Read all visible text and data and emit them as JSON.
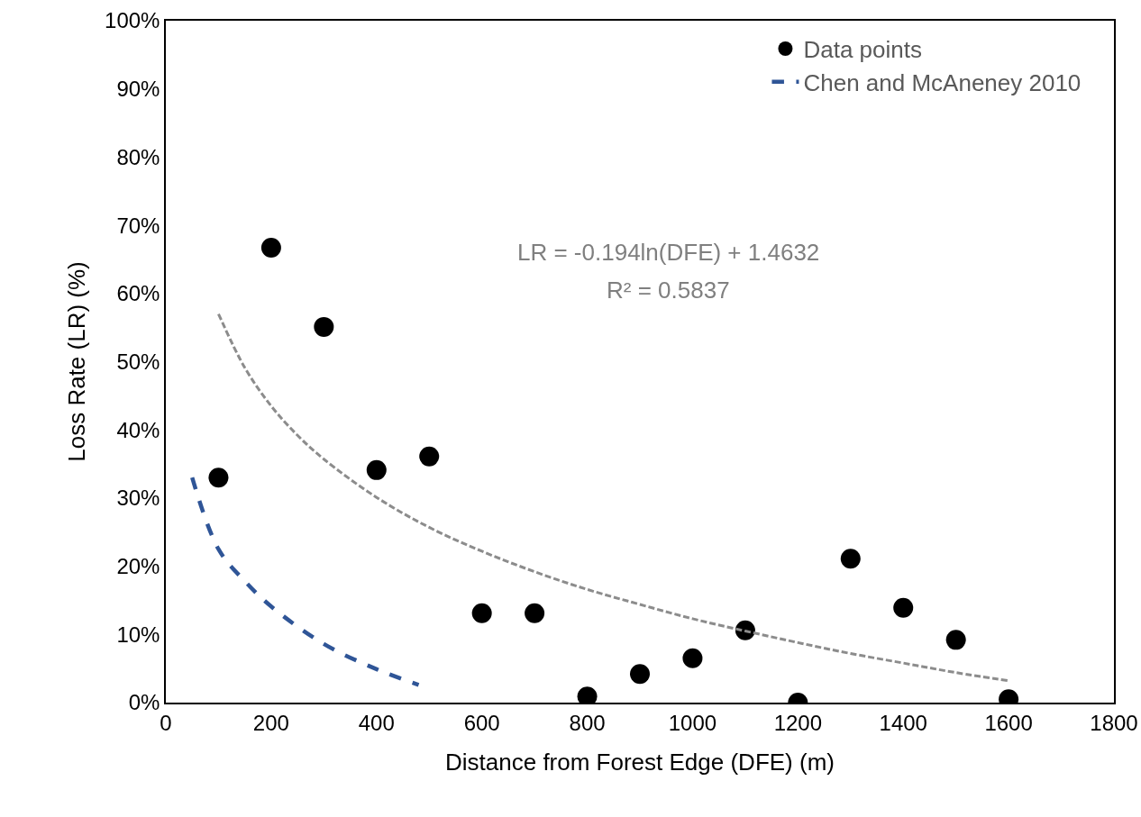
{
  "chart_data": {
    "type": "scatter",
    "xlabel": "Distance from Forest Edge (DFE) (m)",
    "ylabel": "Loss Rate (LR) (%)",
    "x": [
      100,
      200,
      300,
      400,
      500,
      600,
      700,
      800,
      900,
      1000,
      1100,
      1200,
      1300,
      1400,
      1500,
      1600
    ],
    "series": [
      {
        "name": "Data points",
        "color": "#000000",
        "marker": "circle",
        "values": [
          33.0,
          66.7,
          55.1,
          34.1,
          36.1,
          13.1,
          13.1,
          0.9,
          4.2,
          6.5,
          10.6,
          0,
          21.1,
          13.9,
          9.2,
          0.5
        ]
      },
      {
        "type": "line",
        "color": "#8c8c8c",
        "line_style": "dashed",
        "marker": "none",
        "x": [
          100,
          150,
          200,
          250,
          300,
          400,
          500,
          600,
          700,
          800,
          900,
          1000,
          1100,
          1200,
          1300,
          1400,
          1500,
          1600
        ],
        "values": [
          57.0,
          49.1,
          43.5,
          39.2,
          35.7,
          30.1,
          25.7,
          22.2,
          19.2,
          16.6,
          14.4,
          12.3,
          10.5,
          8.8,
          7.2,
          5.8,
          4.4,
          3.2
        ]
      },
      {
        "name": "Chen and McAneney 2010",
        "type": "line",
        "color": "#2f5597",
        "line_style": "dashed",
        "marker": "none",
        "x": [
          50,
          100,
          150,
          200,
          300,
          400,
          480
        ],
        "values": [
          33,
          22.5,
          17.8,
          14.1,
          8.6,
          4.9,
          2.6
        ]
      }
    ],
    "annotations": [
      "LR = -0.194ln(DFE) + 1.4632",
      "R² = 0.5837"
    ],
    "xlim": [
      0,
      1800
    ],
    "xticks": [
      0,
      200,
      400,
      600,
      800,
      1000,
      1200,
      1400,
      1600,
      1800
    ],
    "ylim": [
      0,
      100
    ],
    "yticks": [
      {
        "value": 0,
        "label": "0%"
      },
      {
        "value": 10,
        "label": "10%"
      },
      {
        "value": 20,
        "label": "20%"
      },
      {
        "value": 30,
        "label": "30%"
      },
      {
        "value": 40,
        "label": "40%"
      },
      {
        "value": 50,
        "label": "50%"
      },
      {
        "value": 60,
        "label": "60%"
      },
      {
        "value": 70,
        "label": "70%"
      },
      {
        "value": 80,
        "label": "80%"
      },
      {
        "value": 90,
        "label": "90%"
      },
      {
        "value": 100,
        "label": "100%"
      }
    ],
    "grid": false,
    "legend": "top right"
  }
}
